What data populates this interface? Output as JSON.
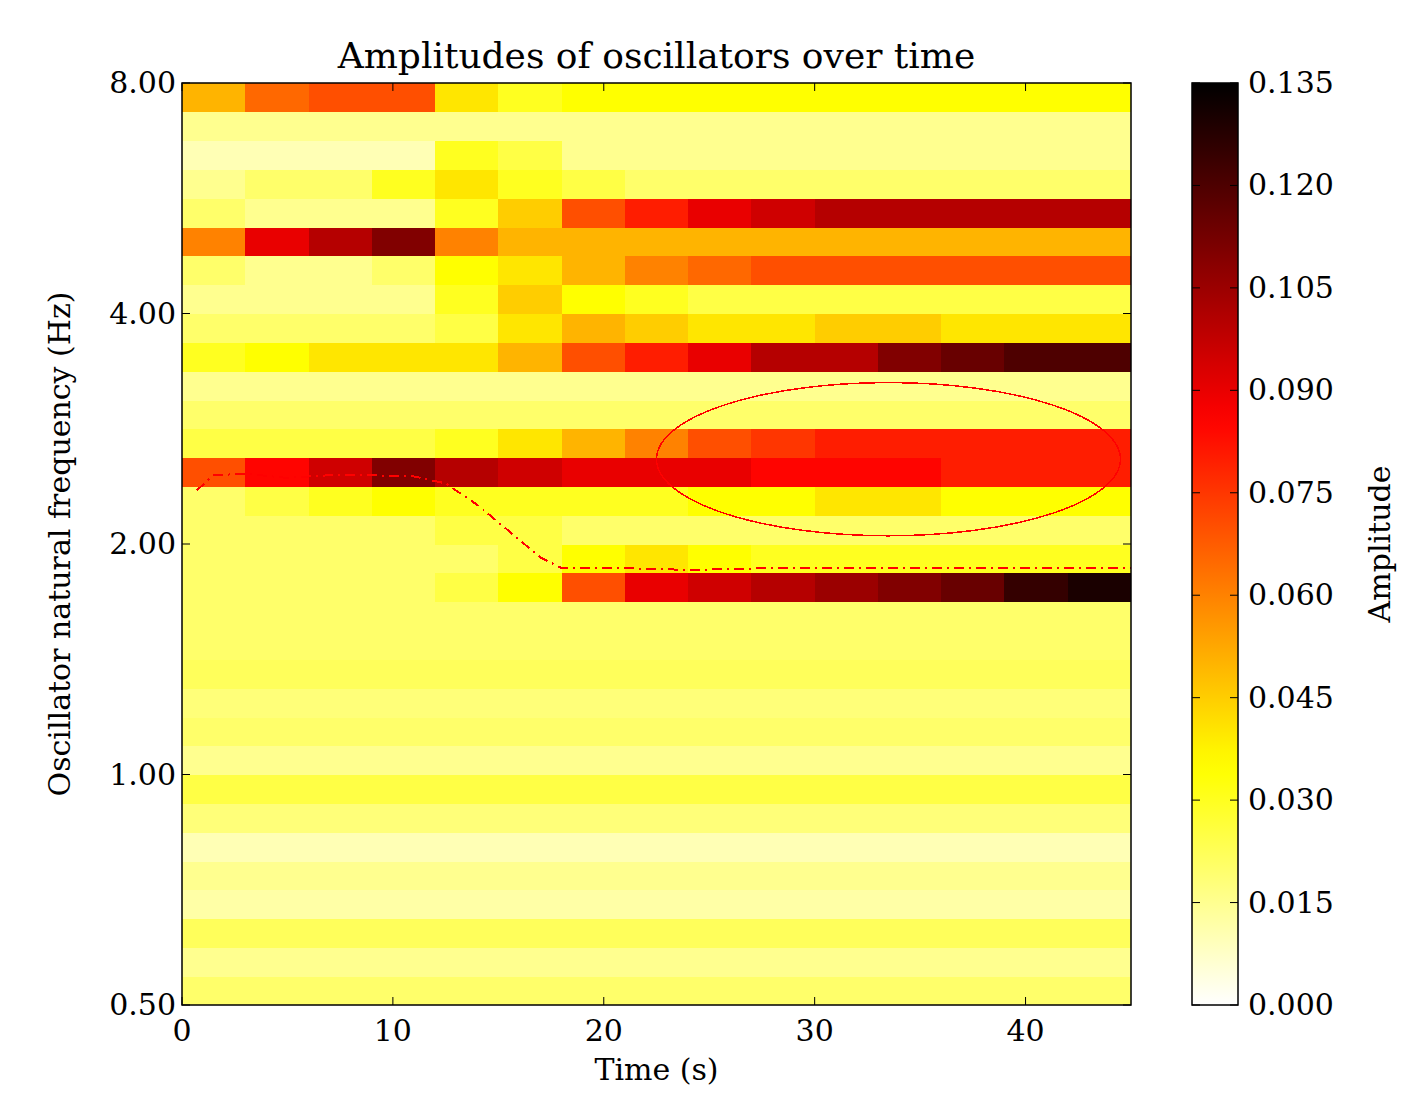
{
  "chart_data": {
    "type": "heatmap",
    "title": "Amplitudes of oscillators over time",
    "x_label": "Time (s)",
    "y_label": "Oscillator natural frequency (Hz)",
    "log": "y",
    "xlim": [
      0,
      45
    ],
    "ylim": [
      0.5,
      8
    ],
    "xticks": [
      0,
      10,
      20,
      30,
      40
    ],
    "yticks": [
      {
        "value": 0.5,
        "label": "0.50"
      },
      {
        "value": 1,
        "label": "1.00"
      },
      {
        "value": 2,
        "label": "2.00"
      },
      {
        "value": 4,
        "label": "4.00"
      },
      {
        "value": 8,
        "label": "8.00"
      }
    ],
    "x_edges": [
      0,
      3,
      6,
      9,
      12,
      15,
      18,
      21,
      24,
      27,
      30,
      33,
      36,
      39,
      42,
      45
    ],
    "y_edges": [
      0.5,
      0.545,
      0.595,
      0.648,
      0.707,
      0.771,
      0.841,
      0.917,
      1,
      1.091,
      1.189,
      1.297,
      1.414,
      1.542,
      1.682,
      1.834,
      2,
      2.181,
      2.378,
      2.594,
      2.828,
      3.084,
      3.364,
      3.668,
      4,
      4.362,
      4.757,
      5.187,
      5.657,
      6.169,
      6.727,
      7.336,
      8
    ],
    "cells": [
      [
        0.02,
        0.02,
        0.02,
        0.02,
        0.02,
        0.02,
        0.02,
        0.02,
        0.02,
        0.02,
        0.02,
        0.02,
        0.02,
        0.02,
        0.02
      ],
      [
        0.015,
        0.015,
        0.015,
        0.015,
        0.015,
        0.015,
        0.015,
        0.015,
        0.015,
        0.015,
        0.015,
        0.015,
        0.015,
        0.015,
        0.015
      ],
      [
        0.022,
        0.022,
        0.022,
        0.022,
        0.022,
        0.022,
        0.022,
        0.022,
        0.022,
        0.022,
        0.022,
        0.022,
        0.022,
        0.022,
        0.022
      ],
      [
        0.012,
        0.012,
        0.012,
        0.012,
        0.012,
        0.012,
        0.012,
        0.012,
        0.012,
        0.012,
        0.012,
        0.012,
        0.012,
        0.012,
        0.012
      ],
      [
        0.015,
        0.015,
        0.015,
        0.015,
        0.015,
        0.015,
        0.015,
        0.015,
        0.015,
        0.015,
        0.015,
        0.015,
        0.015,
        0.015,
        0.015
      ],
      [
        0.01,
        0.01,
        0.01,
        0.01,
        0.01,
        0.01,
        0.01,
        0.01,
        0.01,
        0.01,
        0.01,
        0.01,
        0.01,
        0.01,
        0.01
      ],
      [
        0.018,
        0.018,
        0.018,
        0.018,
        0.018,
        0.018,
        0.018,
        0.018,
        0.018,
        0.018,
        0.018,
        0.018,
        0.018,
        0.018,
        0.018
      ],
      [
        0.025,
        0.025,
        0.025,
        0.025,
        0.025,
        0.025,
        0.025,
        0.025,
        0.025,
        0.025,
        0.025,
        0.025,
        0.025,
        0.025,
        0.025
      ],
      [
        0.015,
        0.015,
        0.015,
        0.015,
        0.015,
        0.015,
        0.015,
        0.015,
        0.015,
        0.015,
        0.015,
        0.015,
        0.015,
        0.015,
        0.015
      ],
      [
        0.02,
        0.02,
        0.02,
        0.02,
        0.02,
        0.02,
        0.02,
        0.02,
        0.02,
        0.02,
        0.02,
        0.02,
        0.02,
        0.02,
        0.02
      ],
      [
        0.018,
        0.018,
        0.018,
        0.018,
        0.018,
        0.018,
        0.018,
        0.018,
        0.018,
        0.018,
        0.018,
        0.018,
        0.018,
        0.018,
        0.018
      ],
      [
        0.022,
        0.022,
        0.022,
        0.022,
        0.022,
        0.022,
        0.022,
        0.022,
        0.022,
        0.022,
        0.022,
        0.022,
        0.022,
        0.022,
        0.022
      ],
      [
        0.02,
        0.02,
        0.02,
        0.02,
        0.02,
        0.02,
        0.02,
        0.02,
        0.02,
        0.02,
        0.02,
        0.02,
        0.02,
        0.02,
        0.02
      ],
      [
        0.02,
        0.02,
        0.02,
        0.02,
        0.02,
        0.02,
        0.02,
        0.02,
        0.02,
        0.02,
        0.02,
        0.02,
        0.02,
        0.02,
        0.02
      ],
      [
        0.02,
        0.02,
        0.02,
        0.02,
        0.025,
        0.035,
        0.07,
        0.09,
        0.095,
        0.1,
        0.105,
        0.11,
        0.115,
        0.125,
        0.13
      ],
      [
        0.02,
        0.02,
        0.02,
        0.02,
        0.02,
        0.025,
        0.035,
        0.04,
        0.035,
        0.03,
        0.03,
        0.03,
        0.03,
        0.03,
        0.03
      ],
      [
        0.02,
        0.02,
        0.02,
        0.02,
        0.025,
        0.025,
        0.02,
        0.02,
        0.02,
        0.02,
        0.02,
        0.02,
        0.02,
        0.02,
        0.02
      ],
      [
        0.02,
        0.025,
        0.03,
        0.035,
        0.03,
        0.03,
        0.03,
        0.03,
        0.035,
        0.035,
        0.04,
        0.04,
        0.035,
        0.035,
        0.035
      ],
      [
        0.07,
        0.085,
        0.095,
        0.11,
        0.1,
        0.095,
        0.09,
        0.09,
        0.09,
        0.085,
        0.085,
        0.085,
        0.08,
        0.08,
        0.08
      ],
      [
        0.025,
        0.025,
        0.025,
        0.025,
        0.03,
        0.04,
        0.05,
        0.06,
        0.07,
        0.075,
        0.08,
        0.08,
        0.08,
        0.08,
        0.08
      ],
      [
        0.02,
        0.02,
        0.02,
        0.02,
        0.02,
        0.02,
        0.02,
        0.02,
        0.02,
        0.02,
        0.02,
        0.02,
        0.02,
        0.02,
        0.02
      ],
      [
        0.015,
        0.015,
        0.015,
        0.015,
        0.015,
        0.015,
        0.015,
        0.015,
        0.015,
        0.015,
        0.015,
        0.015,
        0.015,
        0.015,
        0.015
      ],
      [
        0.03,
        0.035,
        0.04,
        0.04,
        0.04,
        0.05,
        0.07,
        0.08,
        0.09,
        0.1,
        0.1,
        0.11,
        0.115,
        0.12,
        0.12
      ],
      [
        0.02,
        0.02,
        0.02,
        0.02,
        0.025,
        0.04,
        0.05,
        0.045,
        0.04,
        0.04,
        0.045,
        0.045,
        0.04,
        0.04,
        0.04
      ],
      [
        0.015,
        0.015,
        0.015,
        0.015,
        0.03,
        0.045,
        0.035,
        0.03,
        0.025,
        0.025,
        0.025,
        0.025,
        0.025,
        0.025,
        0.025
      ],
      [
        0.02,
        0.015,
        0.015,
        0.02,
        0.035,
        0.04,
        0.05,
        0.06,
        0.065,
        0.07,
        0.07,
        0.07,
        0.07,
        0.07,
        0.07
      ],
      [
        0.06,
        0.09,
        0.1,
        0.11,
        0.06,
        0.05,
        0.05,
        0.05,
        0.05,
        0.05,
        0.05,
        0.05,
        0.05,
        0.05,
        0.05
      ],
      [
        0.02,
        0.015,
        0.015,
        0.015,
        0.03,
        0.045,
        0.07,
        0.08,
        0.09,
        0.095,
        0.1,
        0.1,
        0.1,
        0.1,
        0.1
      ],
      [
        0.015,
        0.02,
        0.02,
        0.03,
        0.04,
        0.03,
        0.025,
        0.02,
        0.02,
        0.02,
        0.02,
        0.02,
        0.02,
        0.02,
        0.02
      ],
      [
        0.01,
        0.01,
        0.01,
        0.01,
        0.03,
        0.025,
        0.015,
        0.015,
        0.015,
        0.015,
        0.015,
        0.015,
        0.015,
        0.015,
        0.015
      ],
      [
        0.015,
        0.015,
        0.015,
        0.015,
        0.015,
        0.015,
        0.015,
        0.015,
        0.015,
        0.015,
        0.015,
        0.015,
        0.015,
        0.015,
        0.015
      ],
      [
        0.05,
        0.065,
        0.07,
        0.07,
        0.04,
        0.03,
        0.035,
        0.035,
        0.035,
        0.035,
        0.035,
        0.035,
        0.035,
        0.035,
        0.035
      ]
    ],
    "colorbar": {
      "label": "Amplitude",
      "range": [
        0,
        0.135
      ],
      "ticks": [
        {
          "value": 0,
          "label": "0.000"
        },
        0.015,
        {
          "value": 0.03,
          "label": "0.030"
        },
        0.045,
        {
          "value": 0.06,
          "label": "0.060"
        },
        0.075,
        {
          "value": 0.09,
          "label": "0.090"
        },
        0.105,
        {
          "value": 0.12,
          "label": "0.120"
        },
        0.135
      ]
    },
    "trajectory": {
      "color": "#ff0000",
      "line_style": "dashdot",
      "x": [
        0.7,
        1.5,
        3,
        5,
        7,
        9,
        11,
        12.5,
        14,
        15.5,
        17,
        18,
        21,
        24,
        28,
        33,
        38,
        45
      ],
      "values": [
        2.35,
        2.46,
        2.47,
        2.44,
        2.46,
        2.46,
        2.45,
        2.4,
        2.25,
        2.08,
        1.92,
        1.86,
        1.86,
        1.85,
        1.86,
        1.86,
        1.86,
        1.86
      ]
    },
    "ellipse": {
      "color": "#ff0000",
      "x_range": [
        22.5,
        44.5
      ],
      "y_range": [
        2.05,
        3.25
      ]
    }
  }
}
